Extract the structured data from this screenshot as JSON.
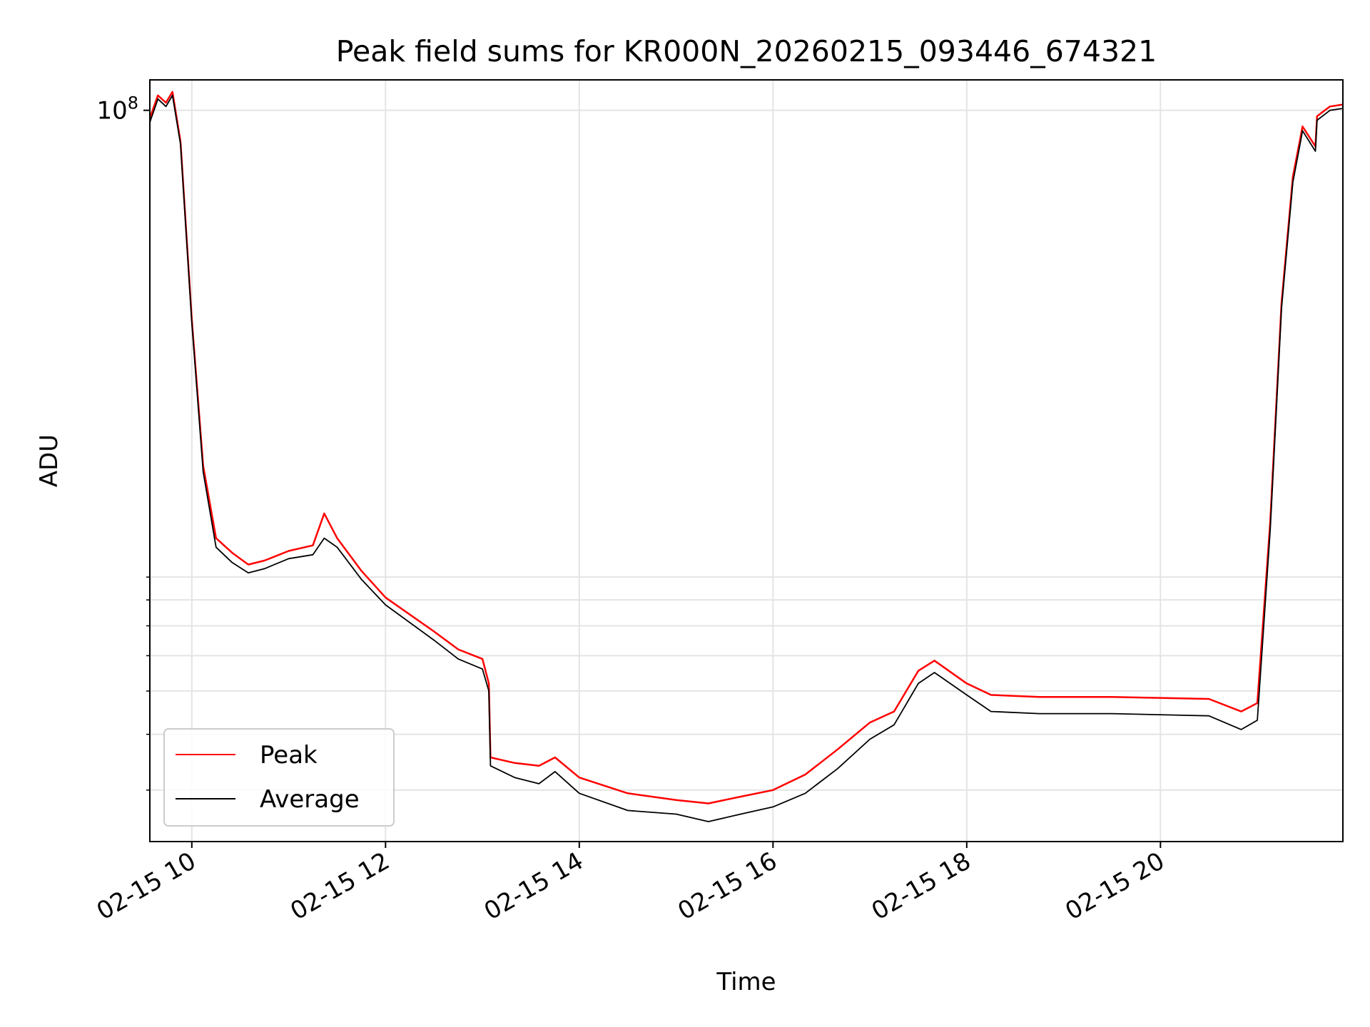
{
  "chart_data": {
    "type": "line",
    "title": "Peak field sums for KR000N_20260215_093446_674321",
    "xlabel": "Time",
    "ylabel": "ADU",
    "yscale": "log",
    "xlim": [
      "2026-02-15 09:34",
      "2026-02-15 21:53"
    ],
    "ylim": [
      2300000,
      117000000
    ],
    "grid": true,
    "legend_position": "lower-left",
    "x_ticks": [
      {
        "value": "2026-02-15 10:00",
        "label": "02-15 10"
      },
      {
        "value": "2026-02-15 12:00",
        "label": "02-15 12"
      },
      {
        "value": "2026-02-15 14:00",
        "label": "02-15 14"
      },
      {
        "value": "2026-02-15 16:00",
        "label": "02-15 16"
      },
      {
        "value": "2026-02-15 18:00",
        "label": "02-15 18"
      },
      {
        "value": "2026-02-15 20:00",
        "label": "02-15 20"
      }
    ],
    "y_major_ticks": [
      {
        "value": 100000000,
        "label": "10",
        "exponent": "8"
      }
    ],
    "y_minor_ticks": [
      3000000,
      4000000,
      5000000,
      6000000,
      7000000,
      8000000,
      9000000
    ],
    "x": [
      "2026-02-15 09:34",
      "2026-02-15 09:39",
      "2026-02-15 09:44",
      "2026-02-15 09:48",
      "2026-02-15 09:53",
      "2026-02-15 10:00",
      "2026-02-15 10:07",
      "2026-02-15 10:15",
      "2026-02-15 10:25",
      "2026-02-15 10:35",
      "2026-02-15 10:45",
      "2026-02-15 11:00",
      "2026-02-15 11:15",
      "2026-02-15 11:22",
      "2026-02-15 11:30",
      "2026-02-15 11:45",
      "2026-02-15 12:00",
      "2026-02-15 12:30",
      "2026-02-15 12:45",
      "2026-02-15 13:00",
      "2026-02-15 13:04",
      "2026-02-15 13:05",
      "2026-02-15 13:20",
      "2026-02-15 13:35",
      "2026-02-15 13:45",
      "2026-02-15 14:00",
      "2026-02-15 14:30",
      "2026-02-15 15:00",
      "2026-02-15 15:20",
      "2026-02-15 15:40",
      "2026-02-15 16:00",
      "2026-02-15 16:20",
      "2026-02-15 16:40",
      "2026-02-15 17:00",
      "2026-02-15 17:15",
      "2026-02-15 17:30",
      "2026-02-15 17:40",
      "2026-02-15 18:00",
      "2026-02-15 18:15",
      "2026-02-15 18:45",
      "2026-02-15 19:30",
      "2026-02-15 20:30",
      "2026-02-15 20:50",
      "2026-02-15 21:00",
      "2026-02-15 21:08",
      "2026-02-15 21:15",
      "2026-02-15 21:22",
      "2026-02-15 21:27",
      "2026-02-15 21:28",
      "2026-02-15 21:36",
      "2026-02-15 21:37",
      "2026-02-15 21:45",
      "2026-02-15 21:53"
    ],
    "series": [
      {
        "name": "Peak",
        "color": "#ff0000",
        "values": [
          96000000,
          108000000,
          104000000,
          110000000,
          85000000,
          34000000,
          16000000,
          11000000,
          10200000,
          9600000,
          9800000,
          10300000,
          10600000,
          12500000,
          11000000,
          9300000,
          8100000,
          6800000,
          6200000,
          5900000,
          5200000,
          3550000,
          3450000,
          3400000,
          3550000,
          3200000,
          2950000,
          2850000,
          2800000,
          2900000,
          3000000,
          3250000,
          3700000,
          4250000,
          4500000,
          5550000,
          5850000,
          5200000,
          4900000,
          4850000,
          4850000,
          4800000,
          4500000,
          4700000,
          12000000,
          37000000,
          71000000,
          88000000,
          92000000,
          83000000,
          97000000,
          102000000,
          103000000
        ]
      },
      {
        "name": "Average",
        "color": "#000000",
        "values": [
          94000000,
          106000000,
          102000000,
          108000000,
          84000000,
          33500000,
          15500000,
          10500000,
          9700000,
          9200000,
          9400000,
          9900000,
          10100000,
          11000000,
          10500000,
          8900000,
          7800000,
          6500000,
          5900000,
          5600000,
          5000000,
          3400000,
          3200000,
          3100000,
          3300000,
          2950000,
          2700000,
          2650000,
          2550000,
          2650000,
          2750000,
          2950000,
          3350000,
          3900000,
          4200000,
          5200000,
          5500000,
          4900000,
          4500000,
          4450000,
          4450000,
          4400000,
          4100000,
          4300000,
          11500000,
          36000000,
          69000000,
          86000000,
          90000000,
          81000000,
          95000000,
          100000000,
          101000000
        ]
      }
    ]
  }
}
